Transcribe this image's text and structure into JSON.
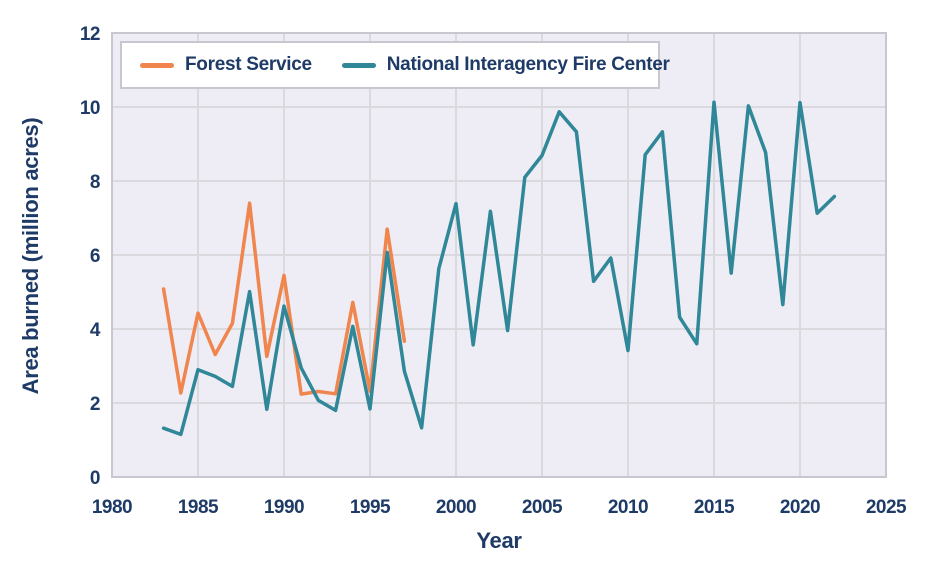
{
  "figure": {
    "background": "#ffffff",
    "plot_background": "#eeedf5",
    "grid_color": "#d9d9de",
    "border_color": "#c6c7cf",
    "text_color": "#1e3a66"
  },
  "chart_data": {
    "type": "line",
    "title": "",
    "xlabel": "Year",
    "ylabel": "Area burned (million acres)",
    "xlim": [
      1980,
      2025
    ],
    "ylim": [
      0,
      12
    ],
    "x_ticks": [
      1980,
      1985,
      1990,
      1995,
      2000,
      2005,
      2010,
      2015,
      2020,
      2025
    ],
    "y_ticks": [
      0,
      2,
      4,
      6,
      8,
      10,
      12
    ],
    "grid": true,
    "legend_position": "top-left",
    "series": [
      {
        "name": "Forest Service",
        "color": "#f0854e",
        "x": [
          1983,
          1984,
          1985,
          1986,
          1987,
          1988,
          1989,
          1990,
          1991,
          1992,
          1993,
          1994,
          1995,
          1996,
          1997
        ],
        "values": [
          5.08,
          2.27,
          4.43,
          3.31,
          4.15,
          7.4,
          3.26,
          5.45,
          2.24,
          2.31,
          2.25,
          4.72,
          2.32,
          6.7,
          3.67
        ]
      },
      {
        "name": "National Interagency Fire Center",
        "color": "#2f8798",
        "x": [
          1983,
          1984,
          1985,
          1986,
          1987,
          1988,
          1989,
          1990,
          1991,
          1992,
          1993,
          1994,
          1995,
          1996,
          1997,
          1998,
          1999,
          2000,
          2001,
          2002,
          2003,
          2004,
          2005,
          2006,
          2007,
          2008,
          2009,
          2010,
          2011,
          2012,
          2013,
          2014,
          2015,
          2016,
          2017,
          2018,
          2019,
          2020,
          2021,
          2022
        ],
        "values": [
          1.32,
          1.15,
          2.9,
          2.72,
          2.45,
          5.01,
          1.83,
          4.62,
          2.95,
          2.07,
          1.8,
          4.07,
          1.84,
          6.07,
          2.86,
          1.33,
          5.63,
          7.39,
          3.57,
          7.18,
          3.96,
          8.1,
          8.69,
          9.87,
          9.33,
          5.29,
          5.92,
          3.42,
          8.71,
          9.33,
          4.32,
          3.6,
          10.13,
          5.51,
          10.03,
          8.77,
          4.66,
          10.12,
          7.13,
          7.58
        ]
      }
    ]
  }
}
